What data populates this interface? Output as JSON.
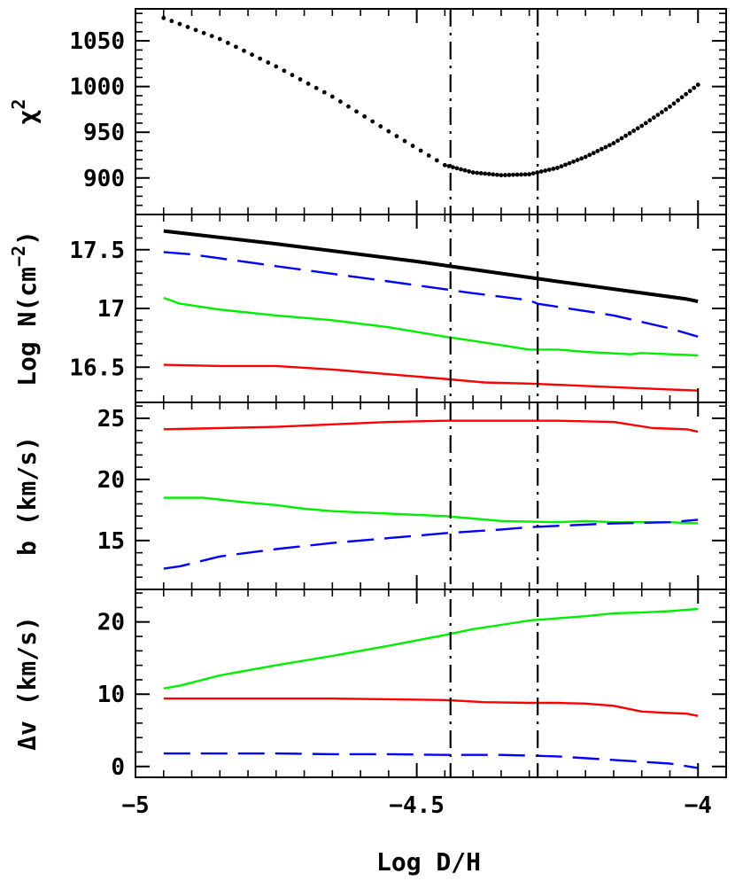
{
  "colors": {
    "black": "#000000",
    "blue": "#0000ff",
    "green": "#00ee00",
    "red": "#ff0000"
  },
  "chart_data": {
    "type": "line",
    "xlabel": "Log D/H",
    "xlim": [
      -5.0,
      -3.95
    ],
    "xticks": [
      -5,
      -4.5,
      -4
    ],
    "xtick_labels": [
      "−5",
      "−4.5",
      "−4"
    ],
    "vlines": [
      -4.44,
      -4.285
    ],
    "panels": [
      {
        "id": "chi2",
        "ylabel_main": "χ",
        "ylabel_sup": "2",
        "ylim": [
          860,
          1085
        ],
        "yticks": [
          900,
          950,
          1000,
          1050
        ],
        "ytick_labels": [
          "900",
          "950",
          "1000",
          "1050"
        ],
        "series": [
          {
            "id": "chi2",
            "color": "#000000",
            "style": "dotted",
            "x": [
              -4.95,
              -4.85,
              -4.75,
              -4.65,
              -4.55,
              -4.45,
              -4.4,
              -4.35,
              -4.3,
              -4.25,
              -4.2,
              -4.15,
              -4.1,
              -4.05,
              -4.0
            ],
            "y": [
              1075,
              1052,
              1022,
              989,
              951,
              914,
              906,
              903,
              904,
              911,
              923,
              938,
              957,
              978,
              1002
            ]
          }
        ]
      },
      {
        "id": "logN",
        "ylabel_main": "Log N(cm",
        "ylabel_sup": "−2",
        "ylabel_end": ")",
        "ylim": [
          16.2,
          17.8
        ],
        "yticks": [
          16.5,
          17,
          17.5
        ],
        "ytick_labels": [
          "16.5",
          "17",
          "17.5"
        ],
        "series": [
          {
            "id": "N-black",
            "color": "#000000",
            "style": "solid",
            "width": 4,
            "x": [
              -4.95,
              -4.75,
              -4.5,
              -4.25,
              -4.02,
              -4.0
            ],
            "y": [
              17.66,
              17.55,
              17.4,
              17.23,
              17.08,
              17.06
            ]
          },
          {
            "id": "N-blue",
            "color": "#0000ff",
            "style": "dashed",
            "width": 2.4,
            "x": [
              -4.95,
              -4.9,
              -4.75,
              -4.55,
              -4.4,
              -4.3,
              -4.285,
              -4.15,
              -4.05,
              -4.0
            ],
            "y": [
              17.48,
              17.46,
              17.36,
              17.23,
              17.13,
              17.07,
              17.04,
              16.94,
              16.83,
              16.76
            ]
          },
          {
            "id": "N-green",
            "color": "#00ee00",
            "style": "solid",
            "width": 2.4,
            "x": [
              -4.95,
              -4.92,
              -4.85,
              -4.75,
              -4.65,
              -4.55,
              -4.45,
              -4.38,
              -4.3,
              -4.25,
              -4.2,
              -4.12,
              -4.1,
              -4.0
            ],
            "y": [
              17.09,
              17.04,
              16.99,
              16.94,
              16.9,
              16.84,
              16.76,
              16.71,
              16.65,
              16.65,
              16.63,
              16.61,
              16.62,
              16.6
            ]
          },
          {
            "id": "N-red",
            "color": "#ff0000",
            "style": "solid",
            "width": 2.4,
            "x": [
              -4.95,
              -4.85,
              -4.75,
              -4.65,
              -4.55,
              -4.45,
              -4.38,
              -4.3,
              -4.25,
              -4.15,
              -4.05,
              -4.0
            ],
            "y": [
              16.52,
              16.51,
              16.51,
              16.48,
              16.44,
              16.4,
              16.37,
              16.36,
              16.35,
              16.33,
              16.31,
              16.3
            ]
          }
        ]
      },
      {
        "id": "b",
        "ylabel_main": "b (km/s)",
        "ylim": [
          11,
          26.3
        ],
        "yticks": [
          15,
          20,
          25
        ],
        "ytick_labels": [
          "15",
          "20",
          "25"
        ],
        "series": [
          {
            "id": "b-red",
            "color": "#ff0000",
            "style": "solid",
            "width": 2.4,
            "x": [
              -4.95,
              -4.85,
              -4.75,
              -4.65,
              -4.55,
              -4.45,
              -4.35,
              -4.25,
              -4.15,
              -4.08,
              -4.02,
              -4.0
            ],
            "y": [
              24.1,
              24.2,
              24.3,
              24.5,
              24.7,
              24.8,
              24.8,
              24.8,
              24.7,
              24.2,
              24.1,
              23.9
            ]
          },
          {
            "id": "b-green",
            "color": "#00ee00",
            "style": "solid",
            "width": 2.4,
            "x": [
              -4.95,
              -4.88,
              -4.8,
              -4.75,
              -4.7,
              -4.65,
              -4.55,
              -4.45,
              -4.4,
              -4.35,
              -4.25,
              -4.2,
              -4.15,
              -4.05,
              -4.0
            ],
            "y": [
              18.5,
              18.5,
              18.1,
              17.9,
              17.6,
              17.4,
              17.2,
              17.0,
              16.8,
              16.6,
              16.5,
              16.6,
              16.5,
              16.5,
              16.4
            ]
          },
          {
            "id": "b-blue",
            "color": "#0000ff",
            "style": "dashed",
            "width": 2.4,
            "x": [
              -4.95,
              -4.92,
              -4.85,
              -4.75,
              -4.65,
              -4.55,
              -4.45,
              -4.35,
              -4.3,
              -4.25,
              -4.15,
              -4.05,
              -4.0
            ],
            "y": [
              12.7,
              12.9,
              13.7,
              14.3,
              14.8,
              15.2,
              15.6,
              15.9,
              16.1,
              16.2,
              16.4,
              16.5,
              16.7
            ]
          }
        ]
      },
      {
        "id": "dv",
        "ylabel_main": "Δv (km/s)",
        "ylim": [
          -1.5,
          24.5
        ],
        "yticks": [
          0,
          10,
          20
        ],
        "ytick_labels": [
          "0",
          "10",
          "20"
        ],
        "series": [
          {
            "id": "dv-green",
            "color": "#00ee00",
            "style": "solid",
            "width": 2.4,
            "x": [
              -4.95,
              -4.92,
              -4.85,
              -4.75,
              -4.65,
              -4.55,
              -4.45,
              -4.4,
              -4.35,
              -4.3,
              -4.25,
              -4.2,
              -4.15,
              -4.1,
              -4.05,
              -4.0
            ],
            "y": [
              10.8,
              11.2,
              12.6,
              14.0,
              15.3,
              16.7,
              18.2,
              19.0,
              19.6,
              20.2,
              20.5,
              20.8,
              21.2,
              21.3,
              21.5,
              21.8
            ]
          },
          {
            "id": "dv-red",
            "color": "#ff0000",
            "style": "solid",
            "width": 2.4,
            "x": [
              -4.95,
              -4.85,
              -4.75,
              -4.65,
              -4.55,
              -4.45,
              -4.38,
              -4.3,
              -4.25,
              -4.2,
              -4.15,
              -4.1,
              -4.05,
              -4.02,
              -4.0
            ],
            "y": [
              9.4,
              9.4,
              9.4,
              9.4,
              9.3,
              9.2,
              8.9,
              8.8,
              8.8,
              8.7,
              8.4,
              7.6,
              7.4,
              7.3,
              7.0
            ]
          },
          {
            "id": "dv-blue",
            "color": "#0000ff",
            "style": "dashed",
            "width": 2.4,
            "x": [
              -4.95,
              -4.85,
              -4.75,
              -4.65,
              -4.55,
              -4.45,
              -4.35,
              -4.3,
              -4.25,
              -4.15,
              -4.05,
              -4.0
            ],
            "y": [
              1.8,
              1.8,
              1.8,
              1.7,
              1.7,
              1.6,
              1.6,
              1.5,
              1.4,
              0.9,
              0.4,
              -0.2
            ]
          }
        ]
      }
    ]
  }
}
